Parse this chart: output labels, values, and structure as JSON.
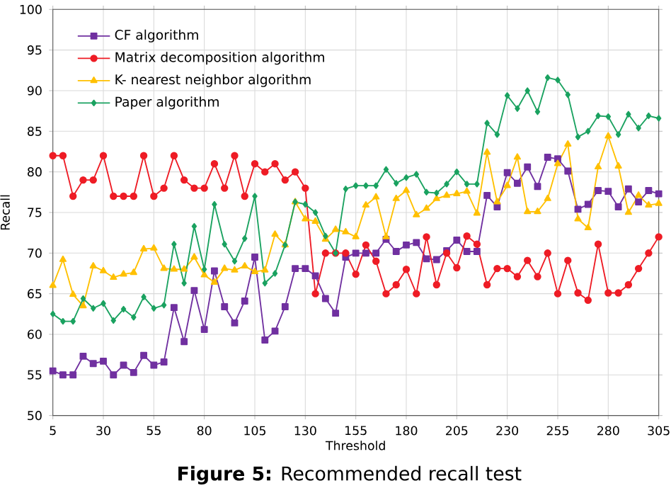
{
  "chart_data": {
    "type": "line",
    "xlabel": "Threshold",
    "ylabel": "Recall",
    "x": [
      5,
      10,
      15,
      20,
      25,
      30,
      35,
      40,
      45,
      50,
      55,
      60,
      65,
      70,
      75,
      80,
      85,
      90,
      95,
      100,
      105,
      110,
      115,
      120,
      125,
      130,
      135,
      140,
      145,
      150,
      155,
      160,
      165,
      170,
      175,
      180,
      185,
      190,
      195,
      200,
      205,
      210,
      215,
      220,
      225,
      230,
      235,
      240,
      245,
      250,
      255,
      260,
      265,
      270,
      275,
      280,
      285,
      290,
      295,
      300,
      305
    ],
    "xlim": [
      5,
      305
    ],
    "xticks": [
      5,
      30,
      55,
      80,
      105,
      130,
      155,
      180,
      205,
      230,
      255,
      280,
      305
    ],
    "ylim": [
      50,
      100
    ],
    "yticks": [
      50,
      55,
      60,
      65,
      70,
      75,
      80,
      85,
      90,
      95,
      100
    ],
    "grid": true,
    "legend": "top left",
    "line_style": "solid",
    "series": [
      {
        "name": "CF algorithm",
        "color": "#7030a0",
        "marker": "square",
        "values": [
          55.5,
          55,
          55,
          57.3,
          56.4,
          56.7,
          55,
          56.2,
          55.3,
          57.4,
          56.2,
          56.6,
          63.3,
          59.1,
          65.4,
          60.6,
          67.8,
          63.4,
          61.4,
          64.1,
          69.5,
          59.3,
          60.4,
          63.4,
          68.1,
          68.1,
          67.2,
          64.4,
          62.6,
          69.5,
          70,
          70,
          70,
          71.7,
          70.2,
          71,
          71.3,
          69.3,
          69.2,
          70.3,
          71.6,
          70.2,
          70.2,
          77.1,
          75.7,
          79.9,
          78.6,
          80.6,
          78.2,
          81.8,
          81.6,
          80.1,
          75.4,
          76,
          77.7,
          77.6,
          75.7,
          77.9,
          76.3,
          77.7,
          77.3
        ]
      },
      {
        "name": "Matrix decomposition algorithm",
        "color": "#ee1c25",
        "marker": "circle",
        "values": [
          82,
          82,
          77,
          79,
          79,
          82,
          77,
          77,
          77,
          82,
          77,
          78,
          82,
          79,
          78,
          78,
          81,
          78,
          82,
          77,
          81,
          80,
          81,
          79,
          80,
          78,
          65,
          70,
          70,
          70,
          67.4,
          71,
          69,
          65,
          66.1,
          68,
          65,
          72,
          66.1,
          70,
          68.2,
          72.1,
          71.1,
          66.1,
          68.1,
          68.1,
          67.1,
          69.1,
          67.1,
          70,
          65,
          69.1,
          65.1,
          64.2,
          71.1,
          65.1,
          65.1,
          66.1,
          68.1,
          70,
          72
        ]
      },
      {
        "name": "K- nearest neighbor algorithm",
        "color": "#ffc000",
        "marker": "triangle",
        "values": [
          66,
          69.2,
          64.9,
          63.5,
          68.4,
          67.8,
          67,
          67.4,
          67.6,
          70.5,
          70.6,
          68.1,
          68,
          68,
          69.5,
          67.3,
          66.4,
          68.1,
          67.9,
          68.4,
          67.7,
          67.9,
          72.3,
          71,
          76.3,
          74.2,
          73.9,
          71.7,
          72.9,
          72.6,
          72,
          75.9,
          76.9,
          72,
          76.7,
          77.7,
          74.7,
          75.5,
          76.7,
          77.1,
          77.3,
          77.6,
          74.9,
          82.4,
          76.3,
          78.3,
          81.8,
          75.1,
          75.1,
          76.7,
          81,
          83.4,
          74.2,
          73.1,
          80.6,
          84.4,
          80.7,
          75,
          77.1,
          75.9,
          76.1
        ]
      },
      {
        "name": "Paper algorithm",
        "color": "#1aa260",
        "marker": "diamond",
        "values": [
          62.5,
          61.6,
          61.6,
          64.4,
          63.2,
          63.8,
          61.7,
          63.1,
          62.1,
          64.6,
          63.2,
          63.6,
          71.1,
          66.3,
          73.3,
          68,
          76,
          71.1,
          69,
          71.8,
          77,
          66.3,
          67.5,
          71,
          76.3,
          76,
          75,
          72.1,
          70,
          77.9,
          78.3,
          78.3,
          78.3,
          80.3,
          78.6,
          79.3,
          79.7,
          77.5,
          77.4,
          78.5,
          80,
          78.5,
          78.5,
          86,
          84.6,
          89.4,
          87.8,
          90,
          87.4,
          91.6,
          91.3,
          89.5,
          84.3,
          85,
          86.9,
          86.8,
          84.6,
          87.1,
          85.4,
          86.9,
          86.6
        ]
      }
    ],
    "annotations": [
      "**Figure 5:** Recommended recall test"
    ]
  }
}
